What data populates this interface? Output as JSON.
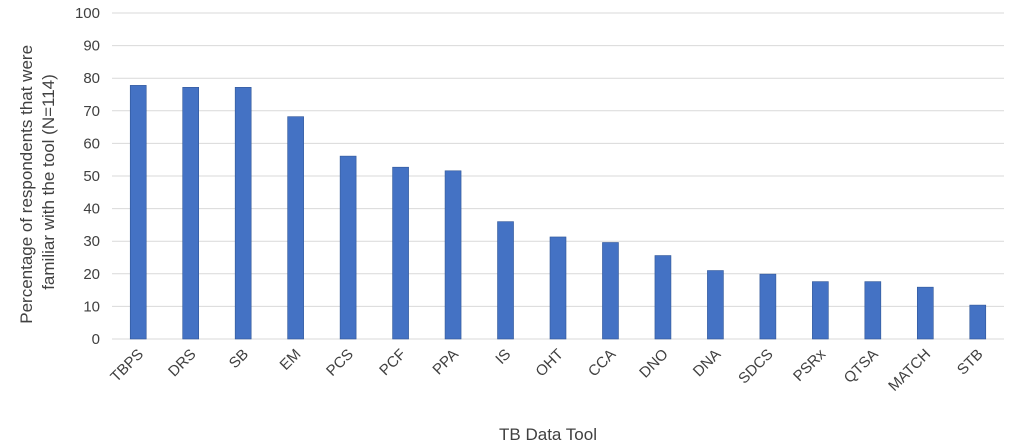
{
  "chart_data": {
    "type": "bar",
    "title": "",
    "xlabel": "TB Data Tool",
    "ylabel_lines": [
      "Percentage of respondents that were",
      "familiar with the tool  (N=114)"
    ],
    "categories": [
      "TBPS",
      "DRS",
      "SB",
      "EM",
      "PCS",
      "PCF",
      "PPA",
      "IS",
      "OHT",
      "CCA",
      "DNO",
      "DNA",
      "SDCS",
      "PSRx",
      "QTSA",
      "MATCH",
      "STB"
    ],
    "values": [
      77.8,
      77.2,
      77.2,
      68.2,
      56.1,
      52.7,
      51.6,
      36.0,
      31.3,
      29.6,
      25.6,
      21.0,
      19.9,
      17.6,
      17.6,
      15.9,
      10.4
    ],
    "ylim": [
      0,
      100
    ],
    "yticks": [
      0,
      10,
      20,
      30,
      40,
      50,
      60,
      70,
      80,
      90,
      100
    ],
    "grid": true,
    "legend": "none",
    "colors": {
      "bar": "#4472C4",
      "bar_edge": "#2F5597",
      "grid": "#D9D9D9",
      "text": "#404040"
    }
  }
}
